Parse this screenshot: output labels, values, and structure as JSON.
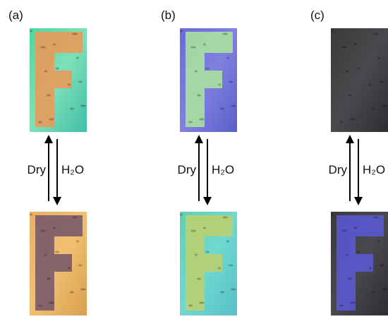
{
  "panels": [
    {
      "label": "(a)",
      "left_text": "Dry",
      "right_text": "H₂O"
    },
    {
      "label": "(b)",
      "left_text": "Dry",
      "right_text": "H₂O"
    },
    {
      "label": "(c)",
      "left_text": "Dry",
      "right_text": "H₂O"
    }
  ]
}
